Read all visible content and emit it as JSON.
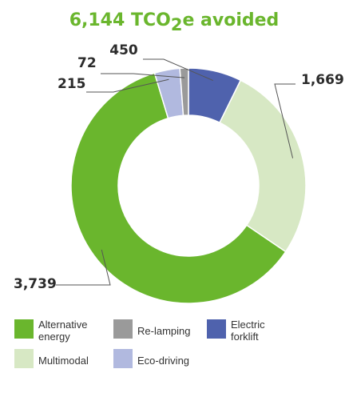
{
  "chart_data": {
    "type": "pie",
    "title_prefix": "6,144 TCO",
    "title_sub": "2",
    "title_suffix": "e avoided",
    "title_color": "#6ab62d",
    "slices": [
      {
        "name": "Electric forklift",
        "value": 450,
        "label": "450",
        "color": "#4f62ad"
      },
      {
        "name": "Multimodal",
        "value": 1669,
        "label": "1,669",
        "color": "#d7e8c4"
      },
      {
        "name": "Alternative energy",
        "value": 3739,
        "label": "3,739",
        "color": "#6ab62d"
      },
      {
        "name": "Eco-driving",
        "value": 215,
        "label": "215",
        "color": "#b1b9df"
      },
      {
        "name": "Re-lamping",
        "value": 72,
        "label": "72",
        "color": "#9a9a9a"
      }
    ],
    "legend": [
      {
        "name": "Alternative energy",
        "lines": [
          "Alternative",
          "energy"
        ],
        "color": "#6ab62d"
      },
      {
        "name": "Re-lamping",
        "lines": [
          "Re-lamping"
        ],
        "color": "#9a9a9a"
      },
      {
        "name": "Electric forklift",
        "lines": [
          "Electric",
          "forklift"
        ],
        "color": "#4f62ad"
      },
      {
        "name": "Multimodal",
        "lines": [
          "Multimodal"
        ],
        "color": "#d7e8c4"
      },
      {
        "name": "Eco-driving",
        "lines": [
          "Eco-driving"
        ],
        "color": "#b1b9df"
      }
    ]
  }
}
